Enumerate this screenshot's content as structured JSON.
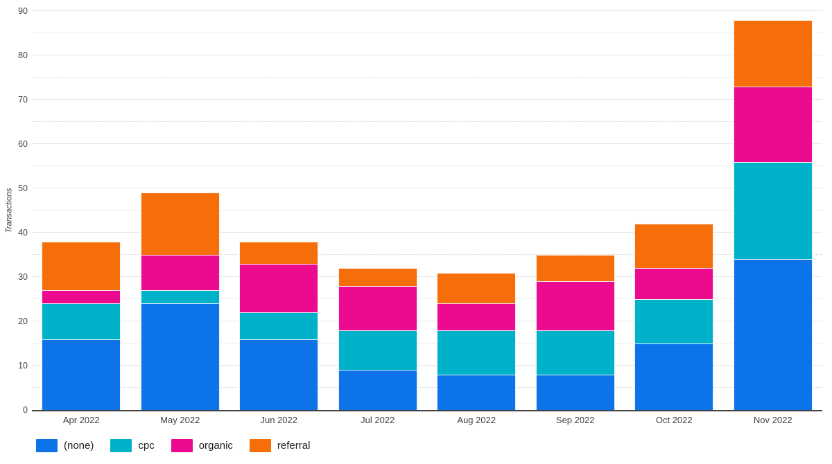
{
  "chart_data": {
    "type": "bar",
    "stacked": true,
    "title": "",
    "ylabel": "Transactions",
    "xlabel": "",
    "ylim": [
      0,
      90
    ],
    "major_step": 10,
    "minor_step": 5,
    "y_tick_labels": [
      "0",
      "10",
      "20",
      "30",
      "40",
      "50",
      "60",
      "70",
      "80",
      "90"
    ],
    "grid": "horizontal, solid major every 10, dotted minor every 5",
    "legend_position": "bottom-left",
    "categories": [
      "Apr 2022",
      "May 2022",
      "Jun 2022",
      "Jul 2022",
      "Aug 2022",
      "Sep 2022",
      "Oct 2022",
      "Nov 2022"
    ],
    "series": [
      {
        "name": "(none)",
        "color": "#0d73e8",
        "values": [
          16,
          24,
          16,
          9,
          8,
          8,
          15,
          34
        ]
      },
      {
        "name": "cpc",
        "color": "#00b2c9",
        "values": [
          8,
          3,
          6,
          9,
          10,
          10,
          10,
          22
        ]
      },
      {
        "name": "organic",
        "color": "#ec0a8e",
        "values": [
          3,
          8,
          11,
          10,
          6,
          11,
          7,
          17
        ]
      },
      {
        "name": "referral",
        "color": "#f56e0a",
        "values": [
          11,
          14,
          5,
          4,
          7,
          6,
          10,
          15
        ]
      }
    ],
    "stack_totals": [
      38,
      49,
      38,
      32,
      31,
      35,
      42,
      88
    ],
    "axis_line_color": "#424242",
    "tick_label_color": "#424242"
  }
}
